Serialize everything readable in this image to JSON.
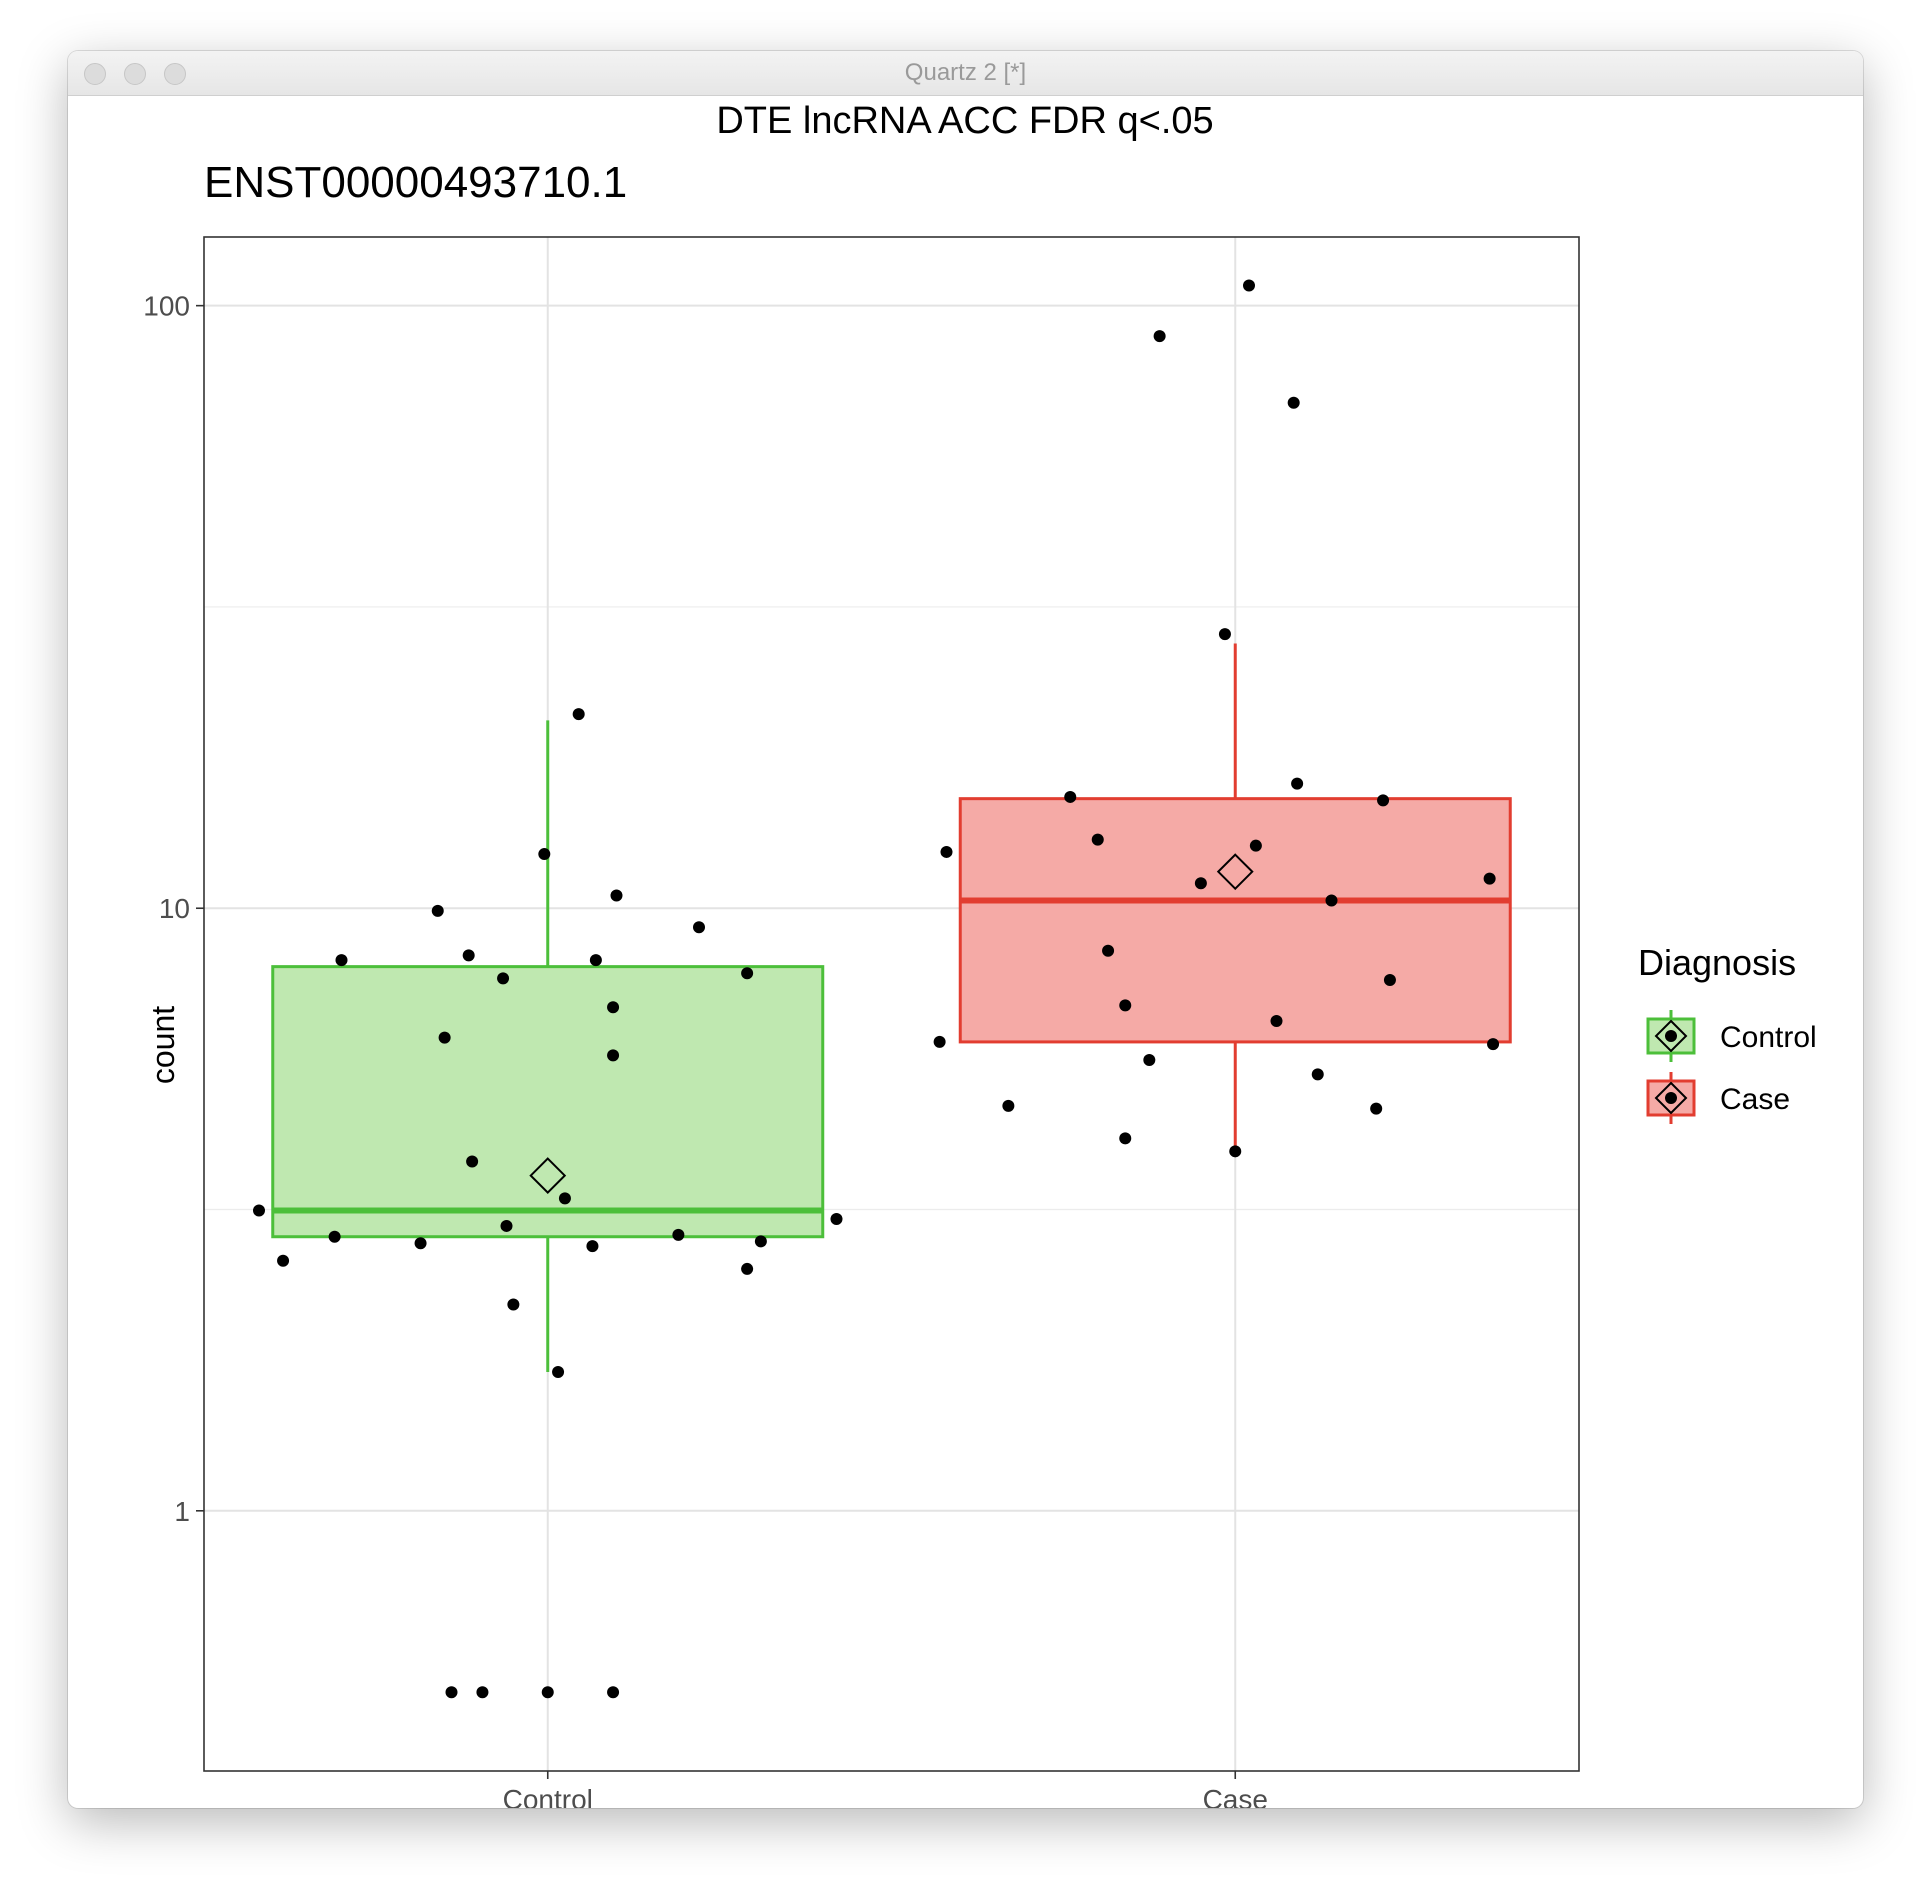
{
  "window": {
    "title": "Quartz 2 [*]"
  },
  "chart_data": {
    "type": "box",
    "title": "DTE lncRNA ACC FDR q<.05",
    "subtitle": "ENST00000493710.1",
    "xlabel": "",
    "ylabel": "count",
    "y_scale": "log10",
    "ylim": [
      0.37,
      130
    ],
    "y_ticks": [
      1,
      10,
      100
    ],
    "y_tick_labels": [
      "1",
      "10",
      "100"
    ],
    "categories": [
      "Control",
      "Case"
    ],
    "grid": true,
    "legend": {
      "title": "Diagnosis",
      "position": "right",
      "entries": [
        "Control",
        "Case"
      ]
    },
    "series": [
      {
        "name": "Control",
        "color": "#4cbf3a",
        "fill": "#bfe8b0",
        "box": {
          "whisker_low": 1.7,
          "q1": 2.85,
          "median": 3.15,
          "q3": 8.0,
          "whisker_high": 20.5,
          "mean": 3.6
        },
        "points": [
          {
            "dx": 0.045,
            "y": 21.0
          },
          {
            "dx": -0.005,
            "y": 12.3
          },
          {
            "dx": 0.1,
            "y": 10.5
          },
          {
            "dx": -0.16,
            "y": 9.9
          },
          {
            "dx": 0.22,
            "y": 9.3
          },
          {
            "dx": -0.3,
            "y": 8.2
          },
          {
            "dx": -0.115,
            "y": 8.35
          },
          {
            "dx": 0.07,
            "y": 8.2
          },
          {
            "dx": -0.065,
            "y": 7.65
          },
          {
            "dx": 0.29,
            "y": 7.8
          },
          {
            "dx": 0.095,
            "y": 6.85
          },
          {
            "dx": -0.15,
            "y": 6.1
          },
          {
            "dx": 0.095,
            "y": 5.7
          },
          {
            "dx": -0.11,
            "y": 3.8
          },
          {
            "dx": 0.025,
            "y": 3.3
          },
          {
            "dx": -0.42,
            "y": 3.15
          },
          {
            "dx": 0.42,
            "y": 3.05
          },
          {
            "dx": -0.06,
            "y": 2.97
          },
          {
            "dx": -0.31,
            "y": 2.85
          },
          {
            "dx": 0.19,
            "y": 2.87
          },
          {
            "dx": -0.185,
            "y": 2.78
          },
          {
            "dx": 0.065,
            "y": 2.75
          },
          {
            "dx": 0.31,
            "y": 2.8
          },
          {
            "dx": -0.385,
            "y": 2.6
          },
          {
            "dx": 0.29,
            "y": 2.52
          },
          {
            "dx": -0.05,
            "y": 2.2
          },
          {
            "dx": 0.015,
            "y": 1.7
          },
          {
            "dx": -0.14,
            "y": 0.5
          },
          {
            "dx": -0.095,
            "y": 0.5
          },
          {
            "dx": 0.0,
            "y": 0.5
          },
          {
            "dx": 0.095,
            "y": 0.5
          }
        ]
      },
      {
        "name": "Case",
        "color": "#e23d30",
        "fill": "#f5aaa6",
        "box": {
          "whisker_low": 3.95,
          "q1": 6.0,
          "median": 10.3,
          "q3": 15.2,
          "whisker_high": 27.5,
          "mean": 11.5
        },
        "points": [
          {
            "dx": 0.02,
            "y": 108
          },
          {
            "dx": -0.11,
            "y": 89
          },
          {
            "dx": 0.085,
            "y": 69
          },
          {
            "dx": -0.015,
            "y": 28.5
          },
          {
            "dx": 0.09,
            "y": 16.1
          },
          {
            "dx": -0.24,
            "y": 15.3
          },
          {
            "dx": 0.215,
            "y": 15.1
          },
          {
            "dx": -0.2,
            "y": 13.0
          },
          {
            "dx": 0.03,
            "y": 12.7
          },
          {
            "dx": -0.42,
            "y": 12.4
          },
          {
            "dx": 0.37,
            "y": 11.2
          },
          {
            "dx": -0.05,
            "y": 11.0
          },
          {
            "dx": 0.14,
            "y": 10.3
          },
          {
            "dx": -0.185,
            "y": 8.5
          },
          {
            "dx": 0.225,
            "y": 7.6
          },
          {
            "dx": -0.16,
            "y": 6.9
          },
          {
            "dx": 0.06,
            "y": 6.5
          },
          {
            "dx": -0.43,
            "y": 6.0
          },
          {
            "dx": 0.375,
            "y": 5.95
          },
          {
            "dx": -0.125,
            "y": 5.6
          },
          {
            "dx": 0.12,
            "y": 5.3
          },
          {
            "dx": -0.33,
            "y": 4.7
          },
          {
            "dx": 0.205,
            "y": 4.65
          },
          {
            "dx": -0.16,
            "y": 4.15
          },
          {
            "dx": 0.0,
            "y": 3.95
          }
        ]
      }
    ]
  }
}
